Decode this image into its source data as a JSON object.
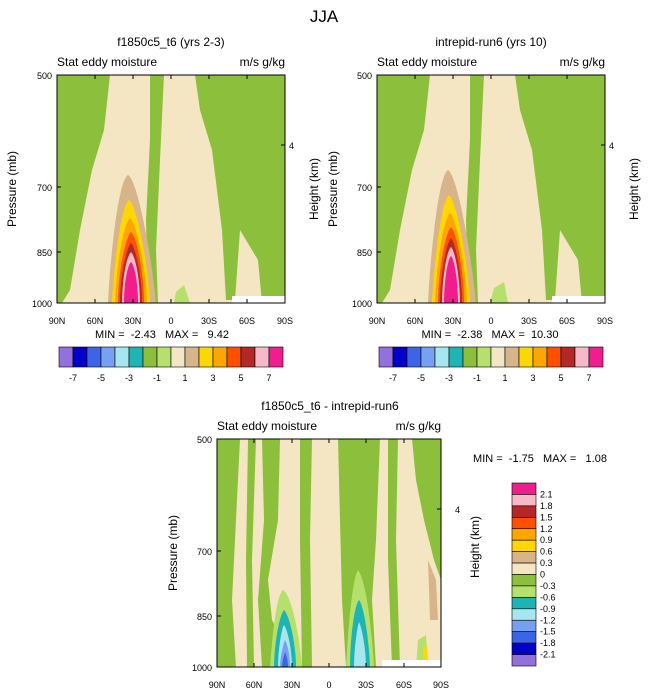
{
  "figure": {
    "season": "JJA"
  },
  "colors": {
    "bg": "#f5e6c3",
    "green": "#8cbf3c",
    "lightgreen": "#b5e06b",
    "tan": "#d8b48a",
    "pink": "#f7b8c8",
    "magenta": "#f01e8c"
  },
  "chart_data": [
    {
      "type": "contour-fill",
      "title": "f1850c5_t6 (yrs 2-3)",
      "left_label": "Stat eddy moisture",
      "right_label": "m/s g/kg",
      "ylabel": "Pressure (mb)",
      "ylabel_right": "Height (km)",
      "yticks": [
        "500",
        "700",
        "850",
        "1000"
      ],
      "yticks_right": [
        "4"
      ],
      "xticks": [
        "90N",
        "60N",
        "30N",
        "0",
        "30S",
        "60S",
        "90S"
      ],
      "stats": "MIN =  -2.43   MAX =   9.42",
      "colorbar": {
        "colors": [
          "#9370db",
          "#0000c8",
          "#3c64e6",
          "#78a0f0",
          "#a5e6ef",
          "#1eb4b4",
          "#8cbf3c",
          "#b5e06b",
          "#f5e6c3",
          "#d8b48a",
          "#ffd700",
          "#ffa500",
          "#ff5000",
          "#b42828",
          "#f7b8c8",
          "#f01e8c"
        ],
        "labels": [
          "-7",
          "-5",
          "-3",
          "-1",
          "1",
          "3",
          "5",
          "7"
        ]
      }
    },
    {
      "type": "contour-fill",
      "title": "intrepid-run6 (yrs 10)",
      "left_label": "Stat eddy moisture",
      "right_label": "m/s g/kg",
      "ylabel": "Pressure (mb)",
      "ylabel_right": "Height (km)",
      "yticks": [
        "500",
        "700",
        "850",
        "1000"
      ],
      "yticks_right": [
        "4"
      ],
      "xticks": [
        "90N",
        "60N",
        "30N",
        "0",
        "30S",
        "60S",
        "90S"
      ],
      "stats": "MIN =  -2.38   MAX =  10.30",
      "colorbar": {
        "colors": [
          "#9370db",
          "#0000c8",
          "#3c64e6",
          "#78a0f0",
          "#a5e6ef",
          "#1eb4b4",
          "#8cbf3c",
          "#b5e06b",
          "#f5e6c3",
          "#d8b48a",
          "#ffd700",
          "#ffa500",
          "#ff5000",
          "#b42828",
          "#f7b8c8",
          "#f01e8c"
        ],
        "labels": [
          "-7",
          "-5",
          "-3",
          "-1",
          "1",
          "3",
          "5",
          "7"
        ]
      }
    },
    {
      "type": "contour-fill",
      "title": "f1850c5_t6 - intrepid-run6",
      "left_label": "Stat eddy moisture",
      "right_label": "m/s g/kg",
      "ylabel": "Pressure (mb)",
      "ylabel_right": "Height (km)",
      "yticks": [
        "500",
        "700",
        "850",
        "1000"
      ],
      "yticks_right": [
        "4"
      ],
      "xticks": [
        "90N",
        "60N",
        "30N",
        "0",
        "30S",
        "60S",
        "90S"
      ],
      "stats": "MIN =  -1.75   MAX =   1.08",
      "colorbar": {
        "colors": [
          "#f01e8c",
          "#f7b8c8",
          "#b42828",
          "#ff5000",
          "#ffa500",
          "#ffd700",
          "#d8b48a",
          "#f5e6c3",
          "#8cbf3c",
          "#b5e06b",
          "#1eb4b4",
          "#a5e6ef",
          "#78a0f0",
          "#3c64e6",
          "#0000c8",
          "#9370db"
        ],
        "labels": [
          "2.1",
          "1.8",
          "1.5",
          "1.2",
          "0.9",
          "0.6",
          "0.3",
          "0",
          "-0.3",
          "-0.6",
          "-0.9",
          "-1.2",
          "-1.5",
          "-1.8",
          "-2.1"
        ]
      }
    }
  ]
}
